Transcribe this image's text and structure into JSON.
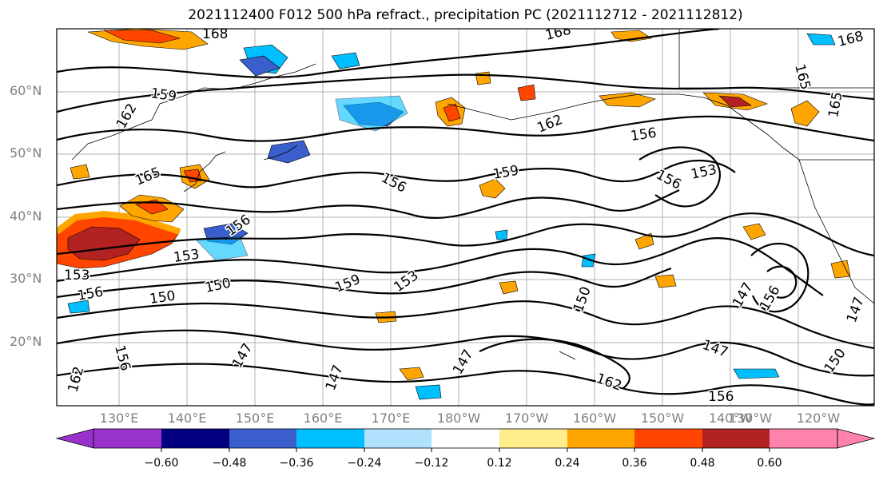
{
  "title": "2021112400 F012 500 hPa refract., precipitation PC (2021112712 - 2021112812)",
  "lat_labels": [
    "60°N",
    "50°N",
    "40°N",
    "30°N",
    "20°N"
  ],
  "lon_labels": [
    "130°E",
    "140°E",
    "150°E",
    "160°E",
    "170°E",
    "180°W",
    "170°W",
    "160°W",
    "150°W",
    "140°W",
    "130°W",
    "120°W"
  ],
  "contour_labels": [
    "168",
    "168",
    "168",
    "165",
    "159",
    "162",
    "165",
    "162",
    "156",
    "159",
    "156",
    "153",
    "156",
    "165",
    "156",
    "153",
    "153",
    "150",
    "159",
    "153",
    "156",
    "150",
    "150",
    "147",
    "147",
    "147",
    "156",
    "162",
    "147",
    "156",
    "162",
    "150",
    "147",
    "147",
    "156"
  ],
  "colorbar": {
    "tick_labels": [
      "−0.60",
      "−0.48",
      "−0.36",
      "−0.24",
      "−0.12",
      "0.12",
      "0.24",
      "0.36",
      "0.48",
      "0.60"
    ],
    "colors": [
      "#9932cc",
      "#000080",
      "#3a5fcd",
      "#00bfff",
      "#b0e2ff",
      "#ffffff",
      "#ffec8b",
      "#ffa500",
      "#ff4500",
      "#b22222",
      "#ff82ab"
    ]
  },
  "legend": {
    "field": "precipitation PC",
    "levels": "500 hPa refract."
  }
}
